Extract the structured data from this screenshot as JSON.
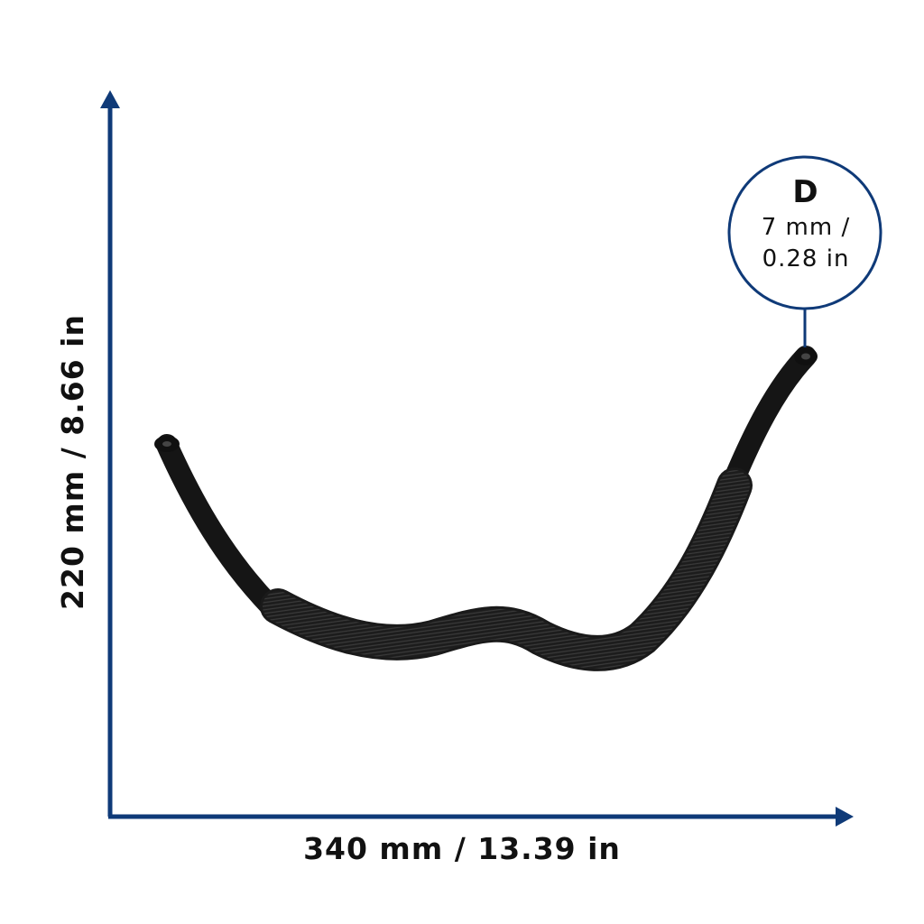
{
  "dimensions": {
    "height": "220 mm / 8.66 in",
    "width": "340 mm / 13.39 in",
    "diameter": {
      "letter": "D",
      "metric": "7 mm /",
      "imperial": "0.28 in"
    }
  }
}
